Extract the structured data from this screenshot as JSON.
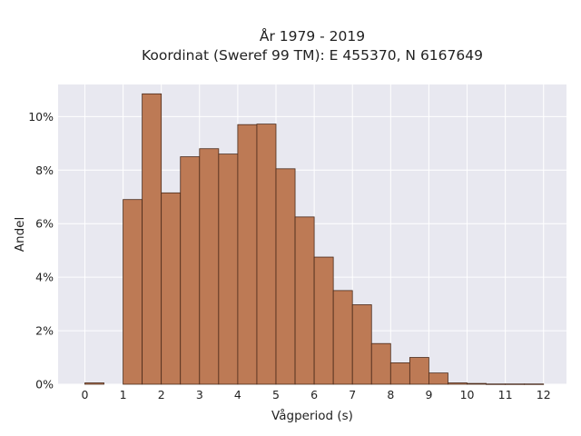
{
  "chart_data": {
    "type": "bar",
    "title_line1": "År 1979 - 2019",
    "title_line2": "Koordinat (Sweref 99 TM): E 455370, N 6167649",
    "xlabel": "Vågperiod (s)",
    "ylabel": "Andel",
    "xlim": [
      -0.7,
      12.6
    ],
    "ylim": [
      0,
      11.2
    ],
    "bin_width": 0.5,
    "x_ticks": [
      0,
      1,
      2,
      3,
      4,
      5,
      6,
      7,
      8,
      9,
      10,
      11,
      12
    ],
    "x_tick_labels": [
      "0",
      "1",
      "2",
      "3",
      "4",
      "5",
      "6",
      "7",
      "8",
      "9",
      "10",
      "11",
      "12"
    ],
    "y_ticks": [
      0,
      2,
      4,
      6,
      8,
      10
    ],
    "y_tick_labels": [
      "0%",
      "2%",
      "4%",
      "6%",
      "8%",
      "10%"
    ],
    "grid": true,
    "bars": [
      {
        "x0": 0.0,
        "value": 0.05
      },
      {
        "x0": 1.0,
        "value": 6.9
      },
      {
        "x0": 1.5,
        "value": 10.85
      },
      {
        "x0": 2.0,
        "value": 7.15
      },
      {
        "x0": 2.5,
        "value": 8.5
      },
      {
        "x0": 3.0,
        "value": 8.8
      },
      {
        "x0": 3.5,
        "value": 8.6
      },
      {
        "x0": 4.0,
        "value": 9.7
      },
      {
        "x0": 4.5,
        "value": 9.72
      },
      {
        "x0": 5.0,
        "value": 8.05
      },
      {
        "x0": 5.5,
        "value": 6.25
      },
      {
        "x0": 6.0,
        "value": 4.75
      },
      {
        "x0": 6.5,
        "value": 3.5
      },
      {
        "x0": 7.0,
        "value": 2.97
      },
      {
        "x0": 7.5,
        "value": 1.52
      },
      {
        "x0": 8.0,
        "value": 0.8
      },
      {
        "x0": 8.5,
        "value": 1.0
      },
      {
        "x0": 9.0,
        "value": 0.42
      },
      {
        "x0": 9.5,
        "value": 0.05
      },
      {
        "x0": 10.0,
        "value": 0.03
      },
      {
        "x0": 10.5,
        "value": 0.01
      },
      {
        "x0": 11.0,
        "value": 0.01
      },
      {
        "x0": 11.5,
        "value": 0.01
      }
    ],
    "colors": {
      "bar_fill": "#bd7a55",
      "bar_edge": "#4a2a1a",
      "plot_bg": "#e8e8f0"
    }
  }
}
